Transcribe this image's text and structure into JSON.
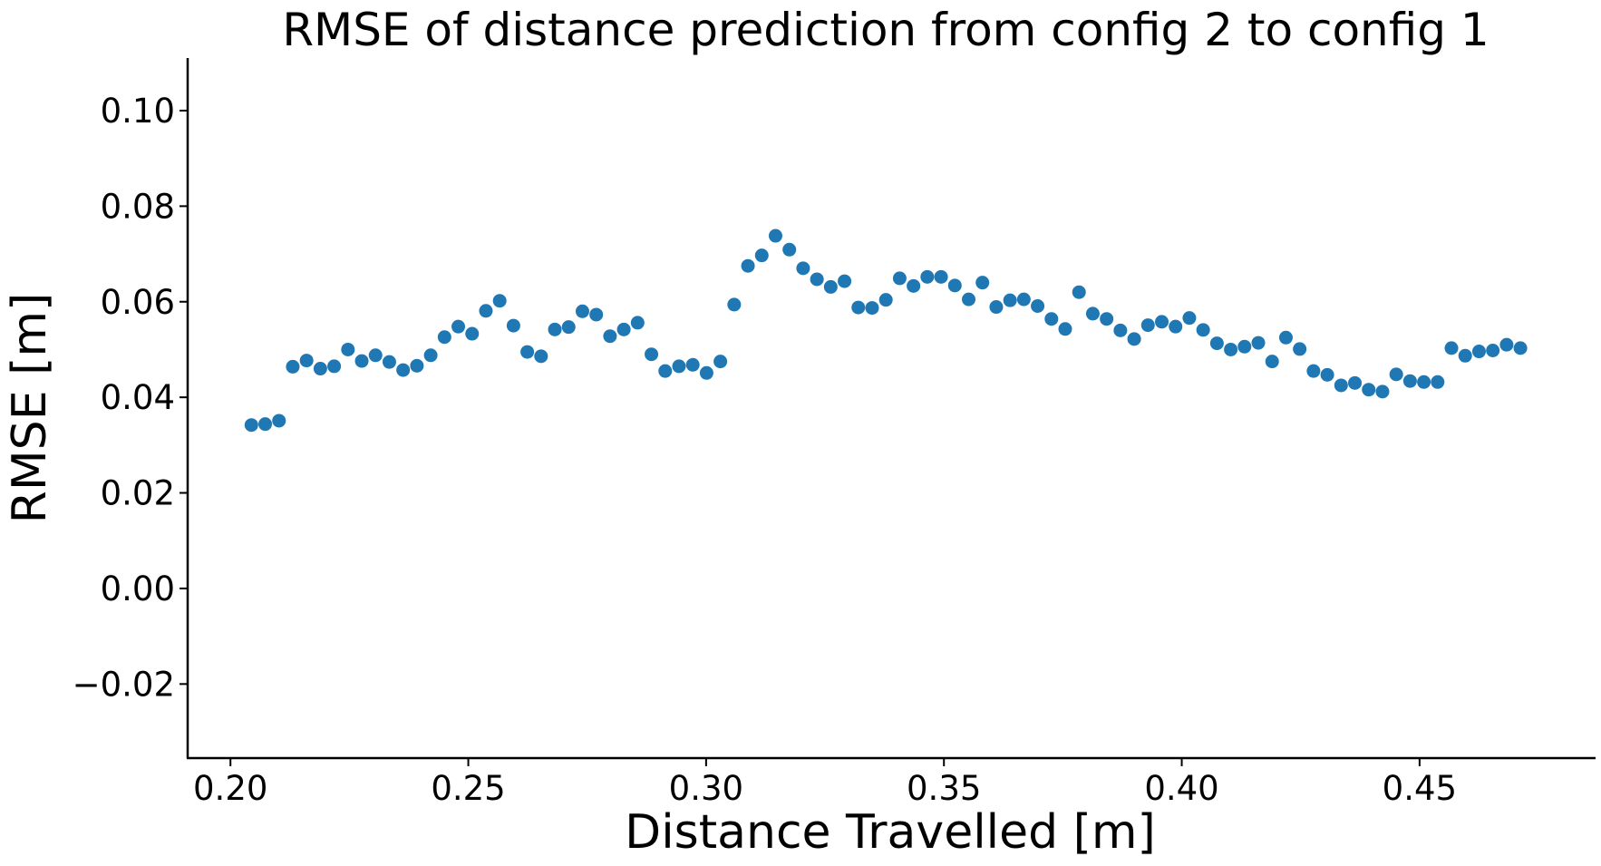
{
  "chart_data": {
    "type": "scatter",
    "title": "RMSE of distance prediction from config 2 to config 1",
    "xlabel": "Distance Travelled [m]",
    "ylabel": "RMSE [m]",
    "xlim": [
      0.191,
      0.487
    ],
    "ylim": [
      -0.0355,
      0.111
    ],
    "x_ticks": [
      0.2,
      0.25,
      0.3,
      0.35,
      0.4,
      0.45
    ],
    "x_tick_labels": [
      "0.20",
      "0.25",
      "0.30",
      "0.35",
      "0.40",
      "0.45"
    ],
    "y_ticks": [
      -0.02,
      0.0,
      0.02,
      0.04,
      0.06,
      0.08,
      0.1
    ],
    "y_tick_labels": [
      "−0.02",
      "0.00",
      "0.02",
      "0.04",
      "0.06",
      "0.08",
      "0.10"
    ],
    "grid": false,
    "marker_color": "#1f77b4",
    "series": [
      {
        "x": [
          0.2044,
          0.2073,
          0.2102,
          0.2131,
          0.216,
          0.2189,
          0.2218,
          0.2247,
          0.2276,
          0.2305,
          0.2334,
          0.2363,
          0.2392,
          0.2421,
          0.245,
          0.2479,
          0.2508,
          0.2537,
          0.2566,
          0.2595,
          0.2624,
          0.2653,
          0.2682,
          0.2711,
          0.274,
          0.2769,
          0.2798,
          0.2827,
          0.2856,
          0.2885,
          0.2914,
          0.2943,
          0.2972,
          0.3001,
          0.303,
          0.3059,
          0.3088,
          0.3117,
          0.3146,
          0.3175,
          0.3204,
          0.3233,
          0.3262,
          0.3291,
          0.332,
          0.3349,
          0.3378,
          0.3407,
          0.3436,
          0.3465,
          0.3494,
          0.3523,
          0.3552,
          0.3581,
          0.361,
          0.3639,
          0.3668,
          0.3697,
          0.3726,
          0.3755,
          0.3784,
          0.3813,
          0.3842,
          0.3871,
          0.39,
          0.3929,
          0.3958,
          0.3987,
          0.4016,
          0.4045,
          0.4074,
          0.4103,
          0.4132,
          0.4161,
          0.419,
          0.4219,
          0.4248,
          0.4277,
          0.4306,
          0.4335,
          0.4364,
          0.4393,
          0.4422,
          0.4451,
          0.448,
          0.4509,
          0.4538,
          0.4567,
          0.4596,
          0.4625,
          0.4654,
          0.4683,
          0.4712
        ],
        "y": [
          0.0342,
          0.0344,
          0.0351,
          0.0464,
          0.0477,
          0.046,
          0.0465,
          0.05,
          0.0476,
          0.0488,
          0.0474,
          0.0457,
          0.0466,
          0.0488,
          0.0526,
          0.0548,
          0.0533,
          0.0581,
          0.0602,
          0.055,
          0.0495,
          0.0486,
          0.0542,
          0.0547,
          0.058,
          0.0573,
          0.0528,
          0.0542,
          0.0556,
          0.049,
          0.0455,
          0.0465,
          0.0468,
          0.0451,
          0.0475,
          0.0594,
          0.0675,
          0.0697,
          0.0738,
          0.0709,
          0.067,
          0.0647,
          0.0631,
          0.0643,
          0.0588,
          0.0587,
          0.0604,
          0.0649,
          0.0633,
          0.0652,
          0.0652,
          0.0634,
          0.0605,
          0.064,
          0.0589,
          0.0603,
          0.0605,
          0.0591,
          0.0564,
          0.0543,
          0.062,
          0.0575,
          0.0564,
          0.054,
          0.0522,
          0.0551,
          0.0558,
          0.0548,
          0.0566,
          0.0541,
          0.0513,
          0.05,
          0.0506,
          0.0514,
          0.0475,
          0.0525,
          0.0501,
          0.0455,
          0.0447,
          0.0425,
          0.043,
          0.0416,
          0.0412,
          0.0448,
          0.0434,
          0.0432,
          0.0432,
          0.0503,
          0.0487,
          0.0496,
          0.0498,
          0.051,
          0.0503
        ]
      }
    ]
  }
}
